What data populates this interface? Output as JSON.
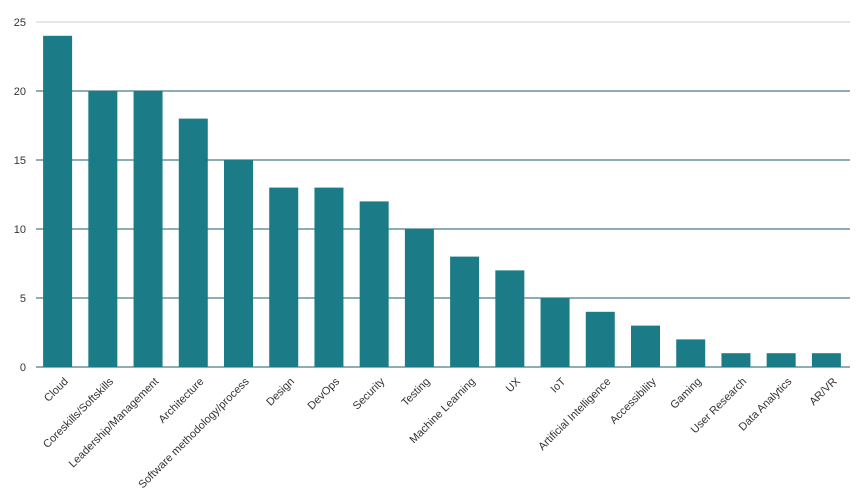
{
  "chart_data": {
    "type": "bar",
    "categories": [
      "Cloud",
      "Coreskills/Softskills",
      "Leadership/Management",
      "Architecture",
      "Software methodology/process",
      "Design",
      "DevOps",
      "Security",
      "Testing",
      "Machine Learning",
      "UX",
      "IoT",
      "Artificial Intelligence",
      "Accessibility",
      "Gaming",
      "User Research",
      "Data Analytics",
      "AR/VR"
    ],
    "values": [
      24,
      20,
      20,
      18,
      15,
      13,
      13,
      12,
      10,
      8,
      7,
      5,
      4,
      3,
      2,
      1,
      1,
      1
    ],
    "y_ticks": [
      "0",
      "5",
      "10",
      "15",
      "20",
      "25"
    ],
    "ylim": [
      0,
      25
    ],
    "grid": true,
    "legend": "none",
    "colors": {
      "bar": "#1b7c87",
      "gridline": "#1b5c66",
      "top_gridline": "#cccccc"
    }
  }
}
